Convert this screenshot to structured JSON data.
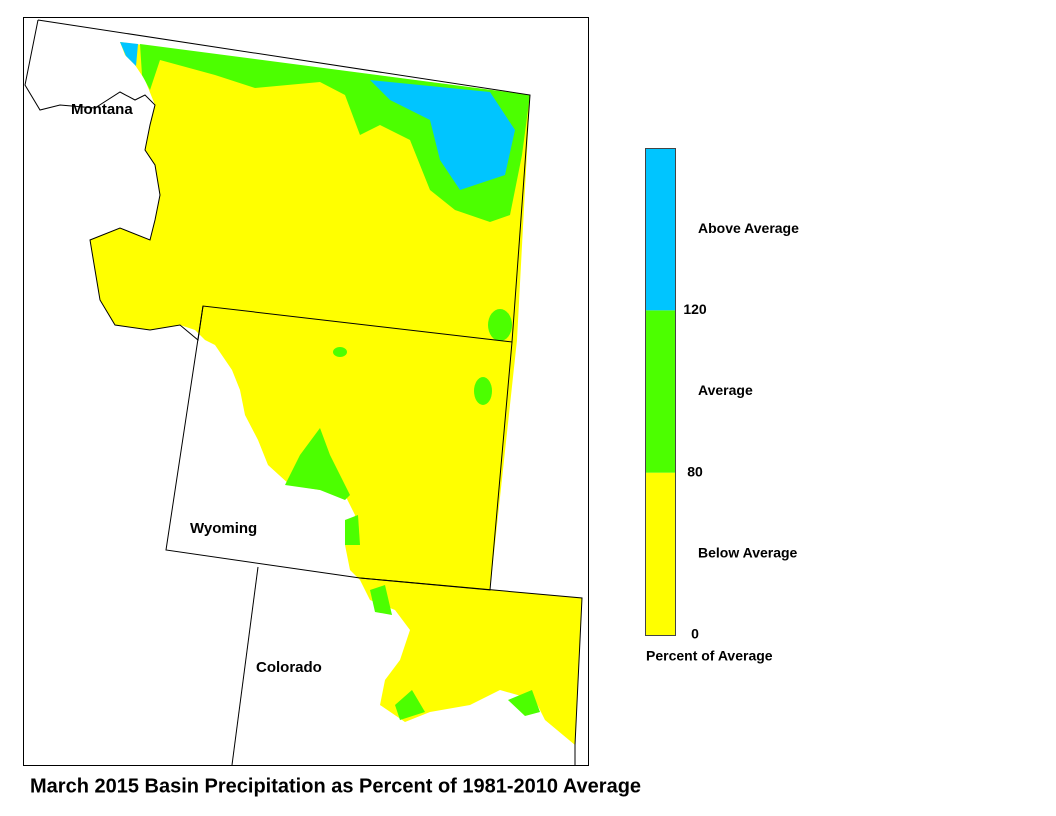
{
  "title": "March 2015 Basin Precipitation as Percent of 1981-2010 Average",
  "states": [
    {
      "label": "Montana"
    },
    {
      "label": "Wyoming"
    },
    {
      "label": "Colorado"
    }
  ],
  "legend": {
    "title": "Percent of Average",
    "categories": [
      {
        "label": "Below Average",
        "color": "#ffff00"
      },
      {
        "label": "Average",
        "color": "#4cff00"
      },
      {
        "label": "Above Average",
        "color": "#00c5ff"
      }
    ],
    "ticks": [
      0,
      80,
      120
    ]
  }
}
